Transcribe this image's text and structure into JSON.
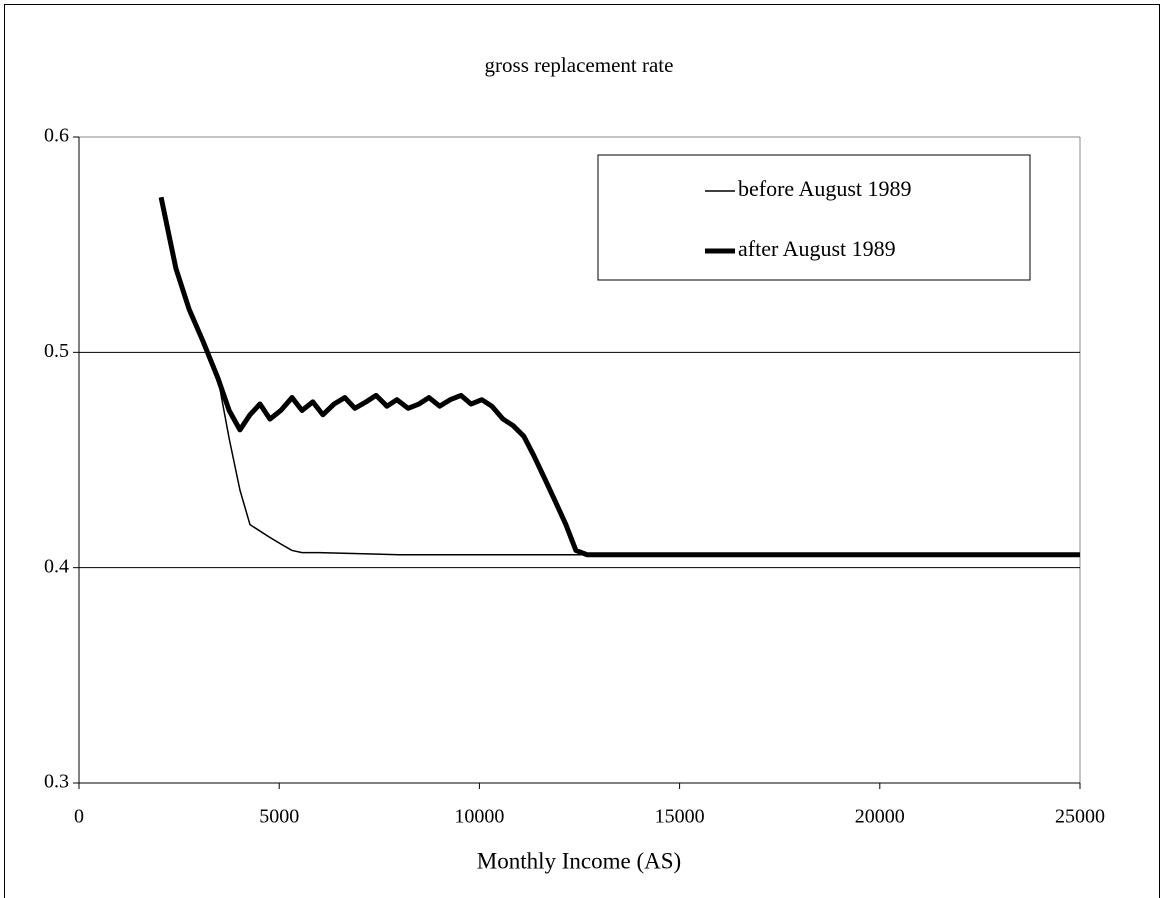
{
  "chart_data": {
    "type": "line",
    "title": "gross replacement rate",
    "x_label": "Monthly Income (AS)",
    "xlim": [
      0,
      25000
    ],
    "xticks": [
      0,
      5000,
      10000,
      15000,
      20000,
      25000
    ],
    "ylim": [
      0.3,
      0.6
    ],
    "yticks": [
      0.3,
      0.4,
      0.5,
      0.6
    ],
    "grid": true,
    "legend_position": "upper right",
    "series": [
      {
        "name": "before August 1989",
        "color": "#000000",
        "line_width": 1.5,
        "x": [
          2050,
          2420,
          2750,
          3100,
          3470,
          3750,
          4020,
          4270,
          4520,
          4770,
          5040,
          5320,
          5570,
          6000,
          8000,
          12000,
          25000
        ],
        "values": [
          0.572,
          0.539,
          0.52,
          0.505,
          0.488,
          0.46,
          0.436,
          0.42,
          0.417,
          0.414,
          0.411,
          0.408,
          0.407,
          0.407,
          0.406,
          0.406,
          0.406
        ]
      },
      {
        "name": "after August 1989",
        "color": "#000000",
        "line_width": 5,
        "x": [
          2050,
          2420,
          2750,
          3100,
          3470,
          3750,
          4020,
          4270,
          4520,
          4770,
          5040,
          5320,
          5570,
          5840,
          6090,
          6370,
          6640,
          6890,
          7170,
          7420,
          7690,
          7940,
          8220,
          8490,
          8740,
          9010,
          9270,
          9540,
          9790,
          10060,
          10310,
          10590,
          10840,
          11110,
          11360,
          11640,
          11890,
          12160,
          12410,
          12690,
          14000,
          16000,
          18000,
          20000,
          22000,
          24000,
          25000
        ],
        "values": [
          0.572,
          0.539,
          0.52,
          0.505,
          0.488,
          0.473,
          0.464,
          0.471,
          0.476,
          0.469,
          0.473,
          0.479,
          0.473,
          0.477,
          0.471,
          0.476,
          0.479,
          0.474,
          0.477,
          0.48,
          0.475,
          0.478,
          0.474,
          0.476,
          0.479,
          0.475,
          0.478,
          0.48,
          0.476,
          0.478,
          0.475,
          0.469,
          0.466,
          0.461,
          0.452,
          0.441,
          0.431,
          0.42,
          0.408,
          0.406,
          0.406,
          0.406,
          0.406,
          0.406,
          0.406,
          0.406,
          0.406
        ]
      }
    ]
  }
}
